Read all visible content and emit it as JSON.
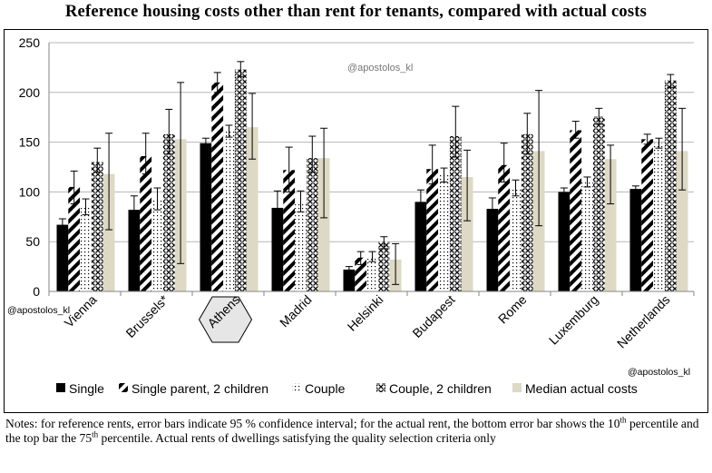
{
  "title": "Reference housing costs other than rent for tenants, compared with actual costs",
  "watermarks": {
    "center": "@apostolos_kl",
    "left": "@apostolos_kl",
    "right": "@apostolos_kl"
  },
  "notes": {
    "p1": "Notes: for reference rents, error bars indicate 95 % confidence interval; for the actual rent, the  bottom error bar  shows the 10",
    "sup1": "th",
    "p2": " percentile and the top bar the 75",
    "sup2": "th",
    "p3": " percentile. Actual rents of dwellings satisfying the quality selection criteria only"
  },
  "colors": {
    "single": "#000000",
    "median": "#ddd9c4",
    "axis": "#868686",
    "grid": "#b7b7b7",
    "hexagon_fill": "#e6e6e6"
  },
  "highlighted_category": "Athens",
  "chart_data": {
    "type": "bar",
    "title": "Reference housing costs other than rent for tenants, compared with actual costs",
    "xlabel": "",
    "ylabel": "",
    "ylim": [
      0,
      250
    ],
    "yticks": [
      0,
      50,
      100,
      150,
      200,
      250
    ],
    "grid": true,
    "legend_position": "bottom",
    "categories": [
      "Vienna",
      "Brussels*",
      "Athens",
      "Madrid",
      "Helsinki",
      "Budapest",
      "Rome",
      "Luxemburg",
      "Netherlands"
    ],
    "series": [
      {
        "name": "Single",
        "pattern": "solid-black",
        "values": [
          67,
          82,
          149,
          84,
          22,
          90,
          83,
          100,
          103
        ],
        "error_low": [
          61,
          75,
          144,
          77,
          20,
          84,
          76,
          97,
          99
        ],
        "error_high": [
          73,
          96,
          154,
          101,
          25,
          102,
          94,
          104,
          106
        ]
      },
      {
        "name": "Single parent, 2 children",
        "pattern": "diagonal-stripes",
        "values": [
          105,
          136,
          210,
          122,
          34,
          123,
          127,
          162,
          153
        ],
        "error_low": [
          88,
          118,
          200,
          100,
          27,
          108,
          110,
          154,
          148
        ],
        "error_high": [
          121,
          159,
          220,
          145,
          40,
          147,
          149,
          171,
          158
        ]
      },
      {
        "name": "Couple",
        "pattern": "dotted",
        "values": [
          85,
          92,
          161,
          90,
          35,
          117,
          103,
          110,
          149
        ],
        "error_low": [
          77,
          82,
          155,
          80,
          30,
          110,
          96,
          105,
          144
        ],
        "error_high": [
          93,
          104,
          167,
          101,
          40,
          124,
          112,
          115,
          154
        ]
      },
      {
        "name": "Couple, 2 children",
        "pattern": "crosshatch",
        "values": [
          130,
          158,
          223,
          134,
          50,
          156,
          158,
          176,
          212
        ],
        "error_low": [
          120,
          138,
          216,
          120,
          43,
          135,
          138,
          168,
          205
        ],
        "error_high": [
          144,
          183,
          231,
          156,
          55,
          186,
          179,
          184,
          218
        ]
      },
      {
        "name": "Median actual costs",
        "pattern": "solid-beige",
        "values": [
          118,
          153,
          165,
          134,
          32,
          115,
          141,
          133,
          141
        ],
        "error_low": [
          62,
          28,
          133,
          74,
          7,
          71,
          66,
          88,
          102
        ],
        "error_high": [
          159,
          210,
          199,
          164,
          48,
          142,
          202,
          147,
          184
        ]
      }
    ]
  }
}
